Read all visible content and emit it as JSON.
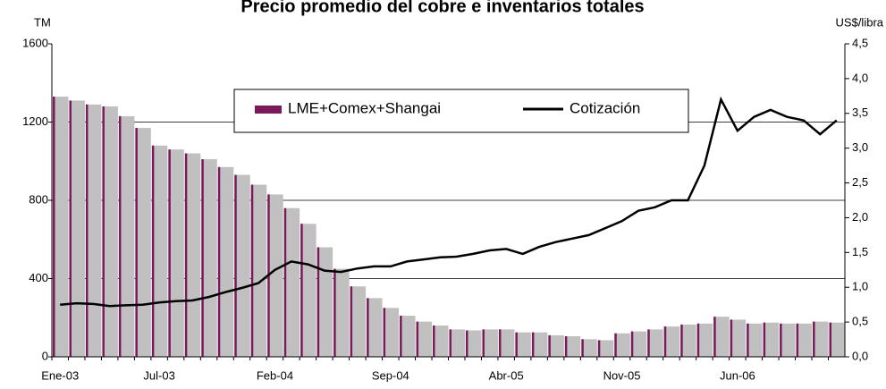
{
  "chart_data": {
    "type": "bar_line",
    "title": "Precio promedio del cobre e inventarios totales",
    "y_label": "TM",
    "y2_label": "US$/libra",
    "categories": [
      "Ene-03",
      null,
      null,
      null,
      null,
      null,
      "Jul-03",
      null,
      null,
      null,
      null,
      null,
      null,
      "Feb-04",
      null,
      null,
      null,
      null,
      null,
      null,
      "Sep-04",
      null,
      null,
      null,
      null,
      null,
      null,
      "Abr-05",
      null,
      null,
      null,
      null,
      null,
      null,
      "Nov-05",
      null,
      null,
      null,
      null,
      null,
      null,
      "Jun-06",
      null,
      null,
      null,
      null,
      null,
      null
    ],
    "series": [
      {
        "name": "LME+Comex+Shangai",
        "color": "#7b1a5a",
        "type": "bar",
        "values": [
          1330,
          1310,
          1290,
          1280,
          1230,
          1170,
          1080,
          1060,
          1040,
          1010,
          970,
          930,
          880,
          830,
          760,
          680,
          560,
          450,
          360,
          300,
          250,
          210,
          180,
          160,
          140,
          135,
          140,
          140,
          125,
          125,
          110,
          105,
          90,
          85,
          120,
          130,
          140,
          155,
          165,
          170,
          205,
          190,
          170,
          175,
          170,
          170,
          180,
          175
        ]
      },
      {
        "name": "Cotización",
        "color": "#000000",
        "type": "line",
        "axis": "y2",
        "values": [
          0.75,
          0.77,
          0.76,
          0.73,
          0.74,
          0.75,
          0.78,
          0.8,
          0.81,
          0.86,
          0.93,
          0.99,
          1.06,
          1.25,
          1.37,
          1.33,
          1.24,
          1.22,
          1.27,
          1.3,
          1.3,
          1.37,
          1.4,
          1.43,
          1.44,
          1.48,
          1.53,
          1.55,
          1.48,
          1.58,
          1.65,
          1.7,
          1.75,
          1.85,
          1.95,
          2.1,
          2.15,
          2.25,
          2.25,
          2.75,
          3.7,
          3.25,
          3.45,
          3.55,
          3.45,
          3.4,
          3.2,
          3.4
        ]
      }
    ],
    "ylim": [
      0,
      1600
    ],
    "yticks": [
      0,
      400,
      800,
      1200,
      1600
    ],
    "y2lim": [
      0,
      4.5
    ],
    "y2ticks": [
      {
        "value": 0,
        "label": "0,0"
      },
      {
        "value": 0.5,
        "label": "0,5"
      },
      {
        "value": 1,
        "label": "1,0"
      },
      {
        "value": 1.5,
        "label": "1,5"
      },
      {
        "value": 2,
        "label": "2,0"
      },
      {
        "value": 2.5,
        "label": "2,5"
      },
      {
        "value": 3,
        "label": "3,0"
      },
      {
        "value": 3.5,
        "label": "3,5"
      },
      {
        "value": 4,
        "label": "4,0"
      },
      {
        "value": 4.5,
        "label": "4,5"
      }
    ],
    "grid": true,
    "bar_fill": "#c0c0c0"
  }
}
